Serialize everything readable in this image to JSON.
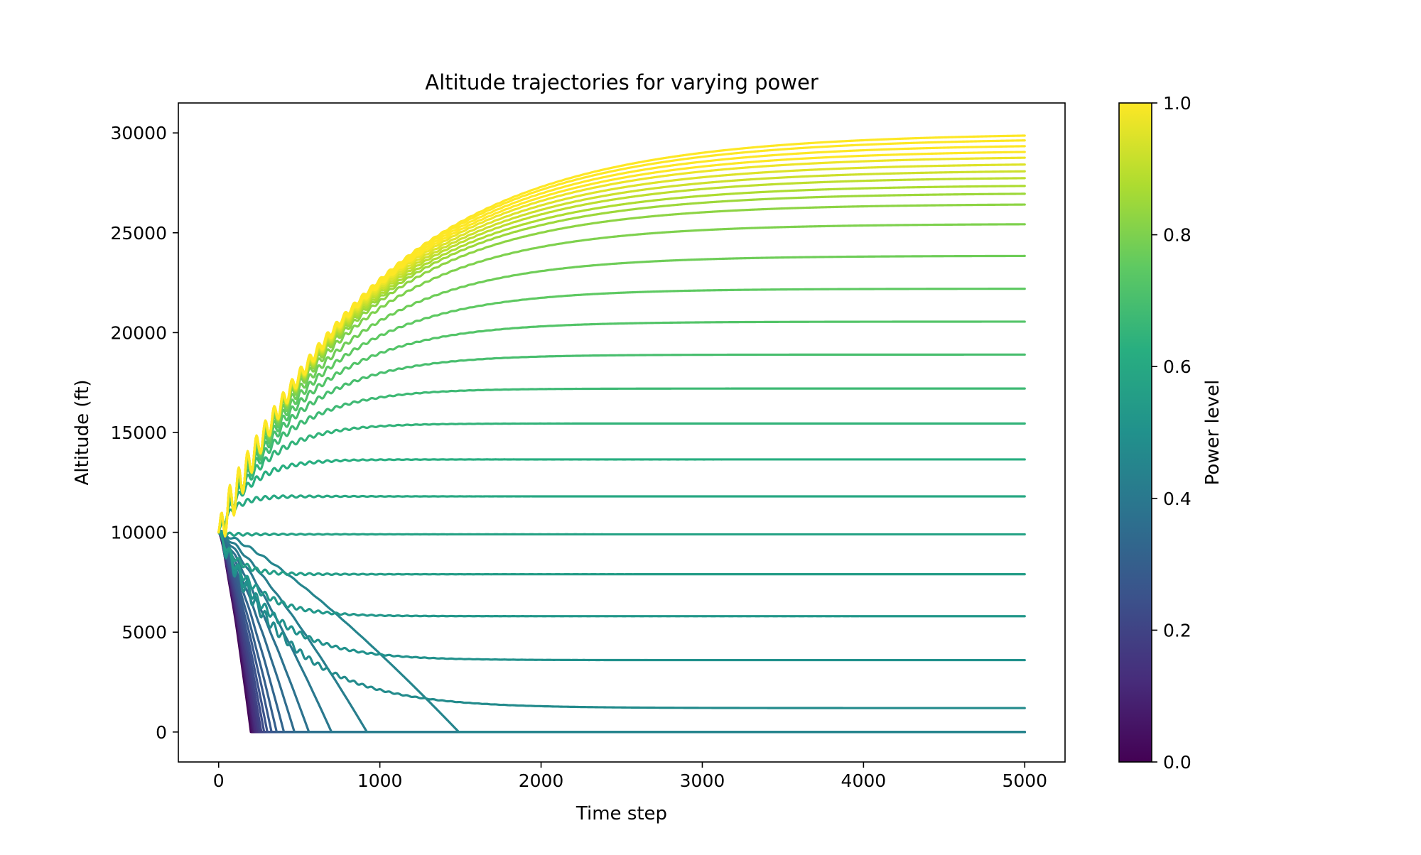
{
  "chart_data": {
    "type": "line",
    "title": "Altitude trajectories for varying power",
    "xlabel": "Time step",
    "ylabel": "Altitude (ft)",
    "xlim": [
      -250,
      5250
    ],
    "ylim": [
      -1500,
      31500
    ],
    "x_ticks": [
      0,
      1000,
      2000,
      3000,
      4000,
      5000
    ],
    "y_ticks": [
      0,
      5000,
      10000,
      15000,
      20000,
      25000,
      30000
    ],
    "grid": false,
    "colormap": "viridis",
    "colorbar": {
      "label": "Power level",
      "range": [
        0,
        1
      ],
      "ticks": [
        "0.0",
        "0.2",
        "0.4",
        "0.6",
        "0.8",
        "1.0"
      ]
    },
    "start_altitude": 10000,
    "time_range": [
      0,
      5000
    ],
    "series": [
      {
        "power": 0.0,
        "final_altitude": 0,
        "crash_step": 200
      },
      {
        "power": 0.025,
        "final_altitude": 0,
        "crash_step": 205
      },
      {
        "power": 0.05,
        "final_altitude": 0,
        "crash_step": 210
      },
      {
        "power": 0.075,
        "final_altitude": 0,
        "crash_step": 215
      },
      {
        "power": 0.1,
        "final_altitude": 0,
        "crash_step": 222
      },
      {
        "power": 0.125,
        "final_altitude": 0,
        "crash_step": 230
      },
      {
        "power": 0.15,
        "final_altitude": 0,
        "crash_step": 240
      },
      {
        "power": 0.175,
        "final_altitude": 0,
        "crash_step": 252
      },
      {
        "power": 0.2,
        "final_altitude": 0,
        "crash_step": 265
      },
      {
        "power": 0.225,
        "final_altitude": 0,
        "crash_step": 282
      },
      {
        "power": 0.25,
        "final_altitude": 0,
        "crash_step": 302
      },
      {
        "power": 0.275,
        "final_altitude": 0,
        "crash_step": 328
      },
      {
        "power": 0.3,
        "final_altitude": 0,
        "crash_step": 360
      },
      {
        "power": 0.325,
        "final_altitude": 0,
        "crash_step": 405
      },
      {
        "power": 0.35,
        "final_altitude": 0,
        "crash_step": 470
      },
      {
        "power": 0.375,
        "final_altitude": 0,
        "crash_step": 560
      },
      {
        "power": 0.4,
        "final_altitude": 0,
        "crash_step": 700
      },
      {
        "power": 0.425,
        "final_altitude": 0,
        "crash_step": 920
      },
      {
        "power": 0.45,
        "final_altitude": 0,
        "crash_step": 1490
      },
      {
        "power": 0.475,
        "final_altitude": 1200
      },
      {
        "power": 0.5,
        "final_altitude": 3600
      },
      {
        "power": 0.525,
        "final_altitude": 5800
      },
      {
        "power": 0.55,
        "final_altitude": 7900
      },
      {
        "power": 0.575,
        "final_altitude": 9900
      },
      {
        "power": 0.6,
        "final_altitude": 11800
      },
      {
        "power": 0.625,
        "final_altitude": 13650
      },
      {
        "power": 0.65,
        "final_altitude": 15450
      },
      {
        "power": 0.675,
        "final_altitude": 17200
      },
      {
        "power": 0.7,
        "final_altitude": 18900
      },
      {
        "power": 0.725,
        "final_altitude": 20550
      },
      {
        "power": 0.75,
        "final_altitude": 22200
      },
      {
        "power": 0.775,
        "final_altitude": 23850
      },
      {
        "power": 0.8,
        "final_altitude": 25450
      },
      {
        "power": 0.825,
        "final_altitude": 26450
      },
      {
        "power": 0.85,
        "final_altitude": 27000
      },
      {
        "power": 0.875,
        "final_altitude": 27400
      },
      {
        "power": 0.9,
        "final_altitude": 27800
      },
      {
        "power": 0.925,
        "final_altitude": 28150
      },
      {
        "power": 0.95,
        "final_altitude": 28500
      },
      {
        "power": 0.975,
        "final_altitude": 28850
      },
      {
        "power": 1.0,
        "final_altitude": 29150
      },
      {
        "power": 1.0,
        "final_altitude": 29450
      },
      {
        "power": 1.0,
        "final_altitude": 29750
      },
      {
        "power": 1.0,
        "final_altitude": 30000
      }
    ]
  }
}
